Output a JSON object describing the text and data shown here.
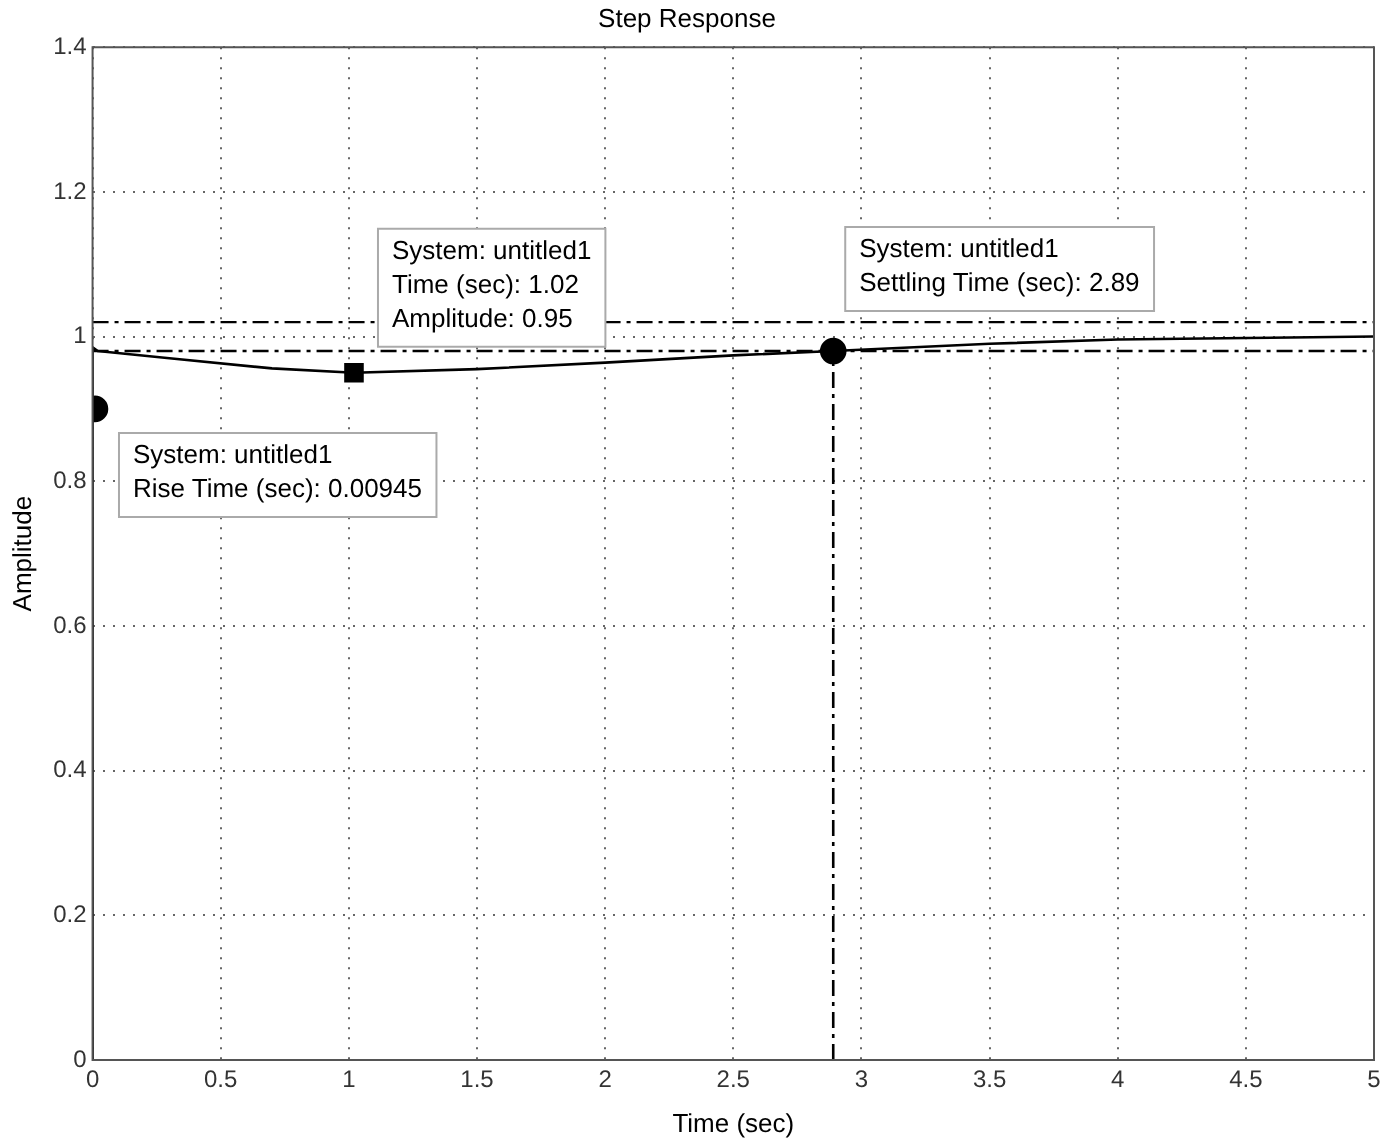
{
  "chart_data": {
    "type": "line",
    "title": "Step Response",
    "xlabel": "Time (sec)",
    "ylabel": "Amplitude",
    "xlim": [
      0,
      5
    ],
    "xticks": [
      0,
      0.5,
      1,
      1.5,
      2,
      2.5,
      3,
      3.5,
      4,
      4.5,
      5
    ],
    "ylim": [
      0,
      1.4
    ],
    "yticks": [
      0,
      0.2,
      0.4,
      0.6,
      0.8,
      1,
      1.2,
      1.4
    ],
    "grid": true,
    "legend": false,
    "line_style": "solid",
    "marker": "none",
    "series": [
      {
        "type": "line",
        "color": "#000000",
        "x": [
          0,
          0,
          0.02,
          0.3,
          0.7,
          1.02,
          1.5,
          2,
          2.5,
          2.89,
          3.5,
          4,
          4.5,
          5
        ],
        "values": [
          0,
          0.985,
          0.98,
          0.97,
          0.956,
          0.95,
          0.955,
          0.964,
          0.974,
          0.98,
          0.99,
          0.996,
          0.998,
          1
        ]
      },
      {
        "type": "line",
        "color": "#000000",
        "line_style": "dashed",
        "x": [
          2.89,
          2.89
        ],
        "values": [
          0,
          0.98
        ]
      },
      {
        "type": "scatter",
        "color": "#000000",
        "marker": "circle",
        "x": [
          0.00945
        ],
        "values": [
          0.9
        ]
      },
      {
        "type": "scatter",
        "color": "#000000",
        "marker": "square",
        "x": [
          1.02
        ],
        "values": [
          0.95
        ]
      },
      {
        "type": "scatter",
        "color": "#000000",
        "marker": "circle",
        "x": [
          2.89
        ],
        "values": [
          0.98
        ]
      }
    ],
    "ref_lines": [
      {
        "axis": "y",
        "value": 1.02,
        "line_style": "dashed",
        "color": "#000000"
      },
      {
        "axis": "y",
        "value": 0.98,
        "line_style": "dashed",
        "color": "#000000"
      }
    ],
    "annotations": [
      {
        "text": "System: untitled1\nRise Time (sec): 0.00945",
        "x": 0.00945,
        "y": 0.9
      },
      {
        "text": "System: untitled1\nTime (sec): 1.02\nAmplitude: 0.95",
        "x": 1.02,
        "y": 0.95
      },
      {
        "text": "System: untitled1\nSettling Time (sec): 2.89",
        "x": 2.89,
        "y": 0.98
      }
    ]
  }
}
